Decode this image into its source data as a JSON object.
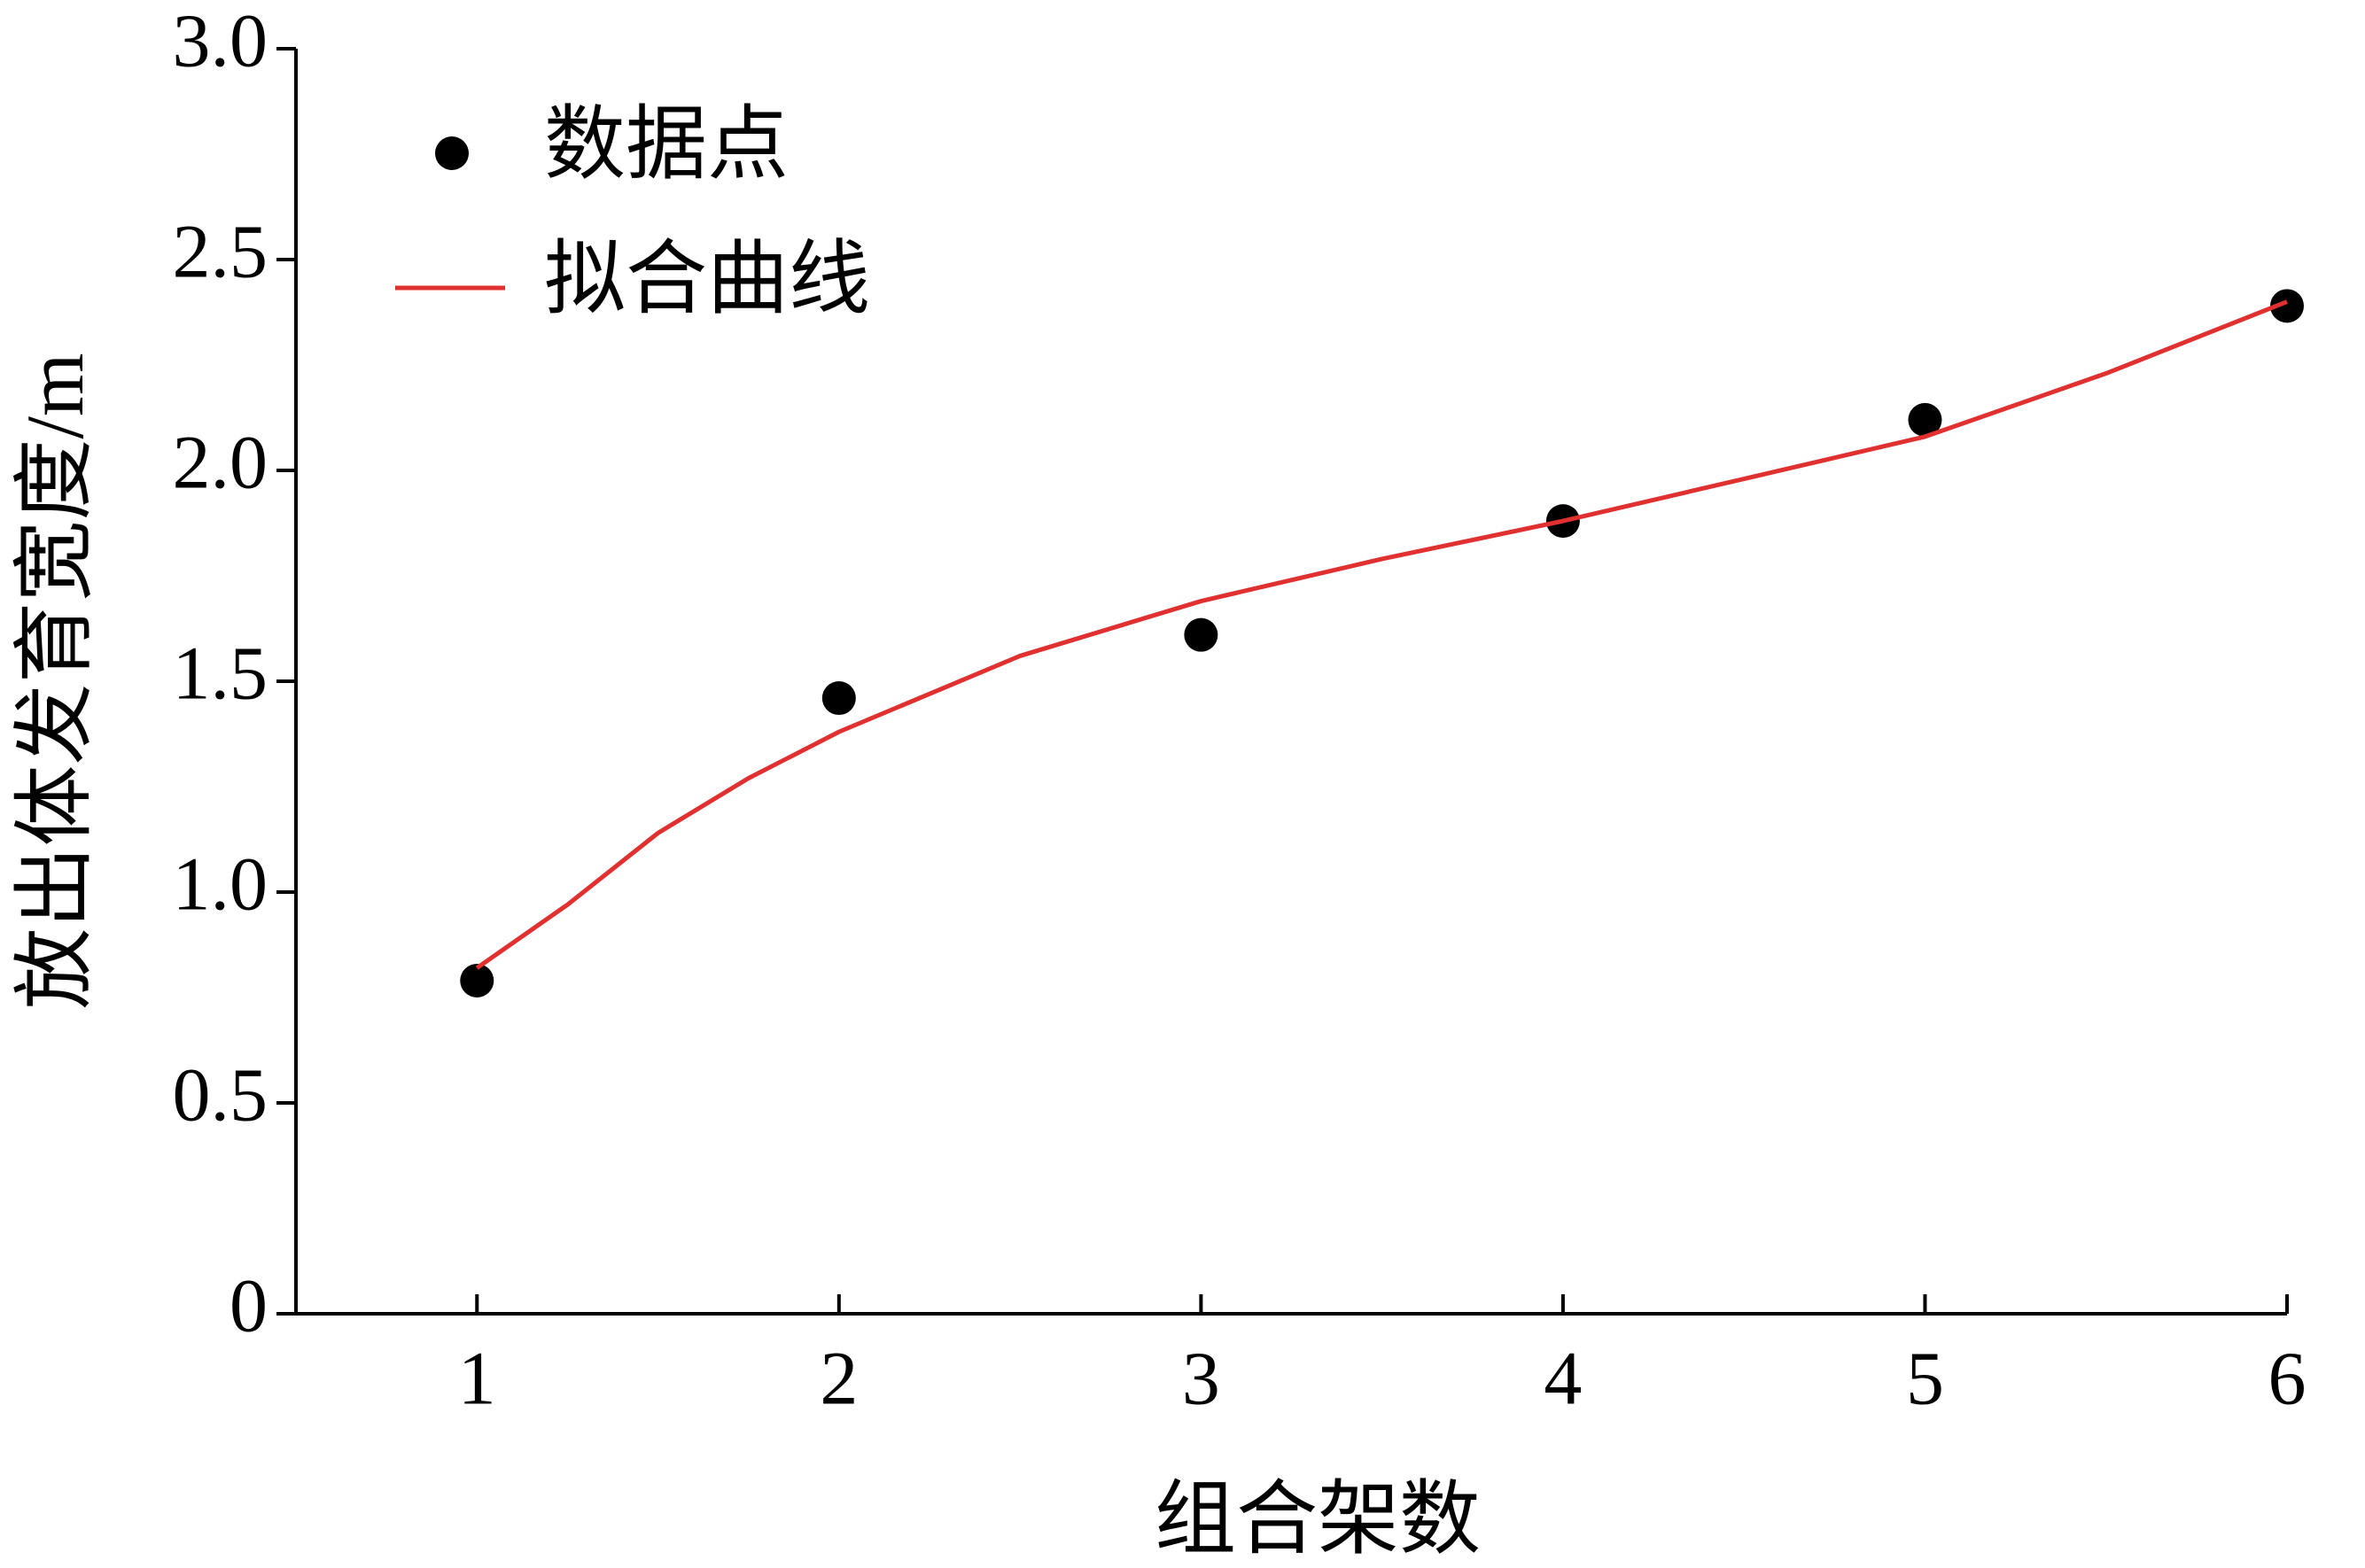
{
  "chart_data": {
    "type": "scatter",
    "xlabel": "组合架数",
    "ylabel": "放出体发育宽度/m",
    "xlim": [
      0.5,
      6
    ],
    "xticks": [
      1,
      2,
      3,
      4,
      5,
      6
    ],
    "ylim": [
      0,
      3
    ],
    "yticks": [
      0,
      0.5,
      {
        "value": 1,
        "label": "1.0"
      },
      1.5,
      {
        "value": 2,
        "label": "2.0"
      },
      2.5,
      {
        "value": 3,
        "label": "3.0"
      }
    ],
    "legend": "upper left",
    "series": [
      {
        "name": "数据点",
        "color": "#000000",
        "style": "marker",
        "x": [
          1,
          2,
          3,
          4,
          5,
          6
        ],
        "values": [
          0.79,
          1.46,
          1.61,
          1.88,
          2.12,
          2.39
        ]
      },
      {
        "name": "拟合曲线",
        "color": "#e03030",
        "style": "line",
        "x": [
          1,
          1.25,
          1.5,
          1.75,
          2,
          2.5,
          3,
          3.5,
          4,
          4.5,
          5,
          5.5,
          6
        ],
        "values": [
          0.82,
          0.97,
          1.14,
          1.27,
          1.38,
          1.56,
          1.69,
          1.79,
          1.88,
          1.98,
          2.08,
          2.23,
          2.4
        ]
      }
    ]
  }
}
